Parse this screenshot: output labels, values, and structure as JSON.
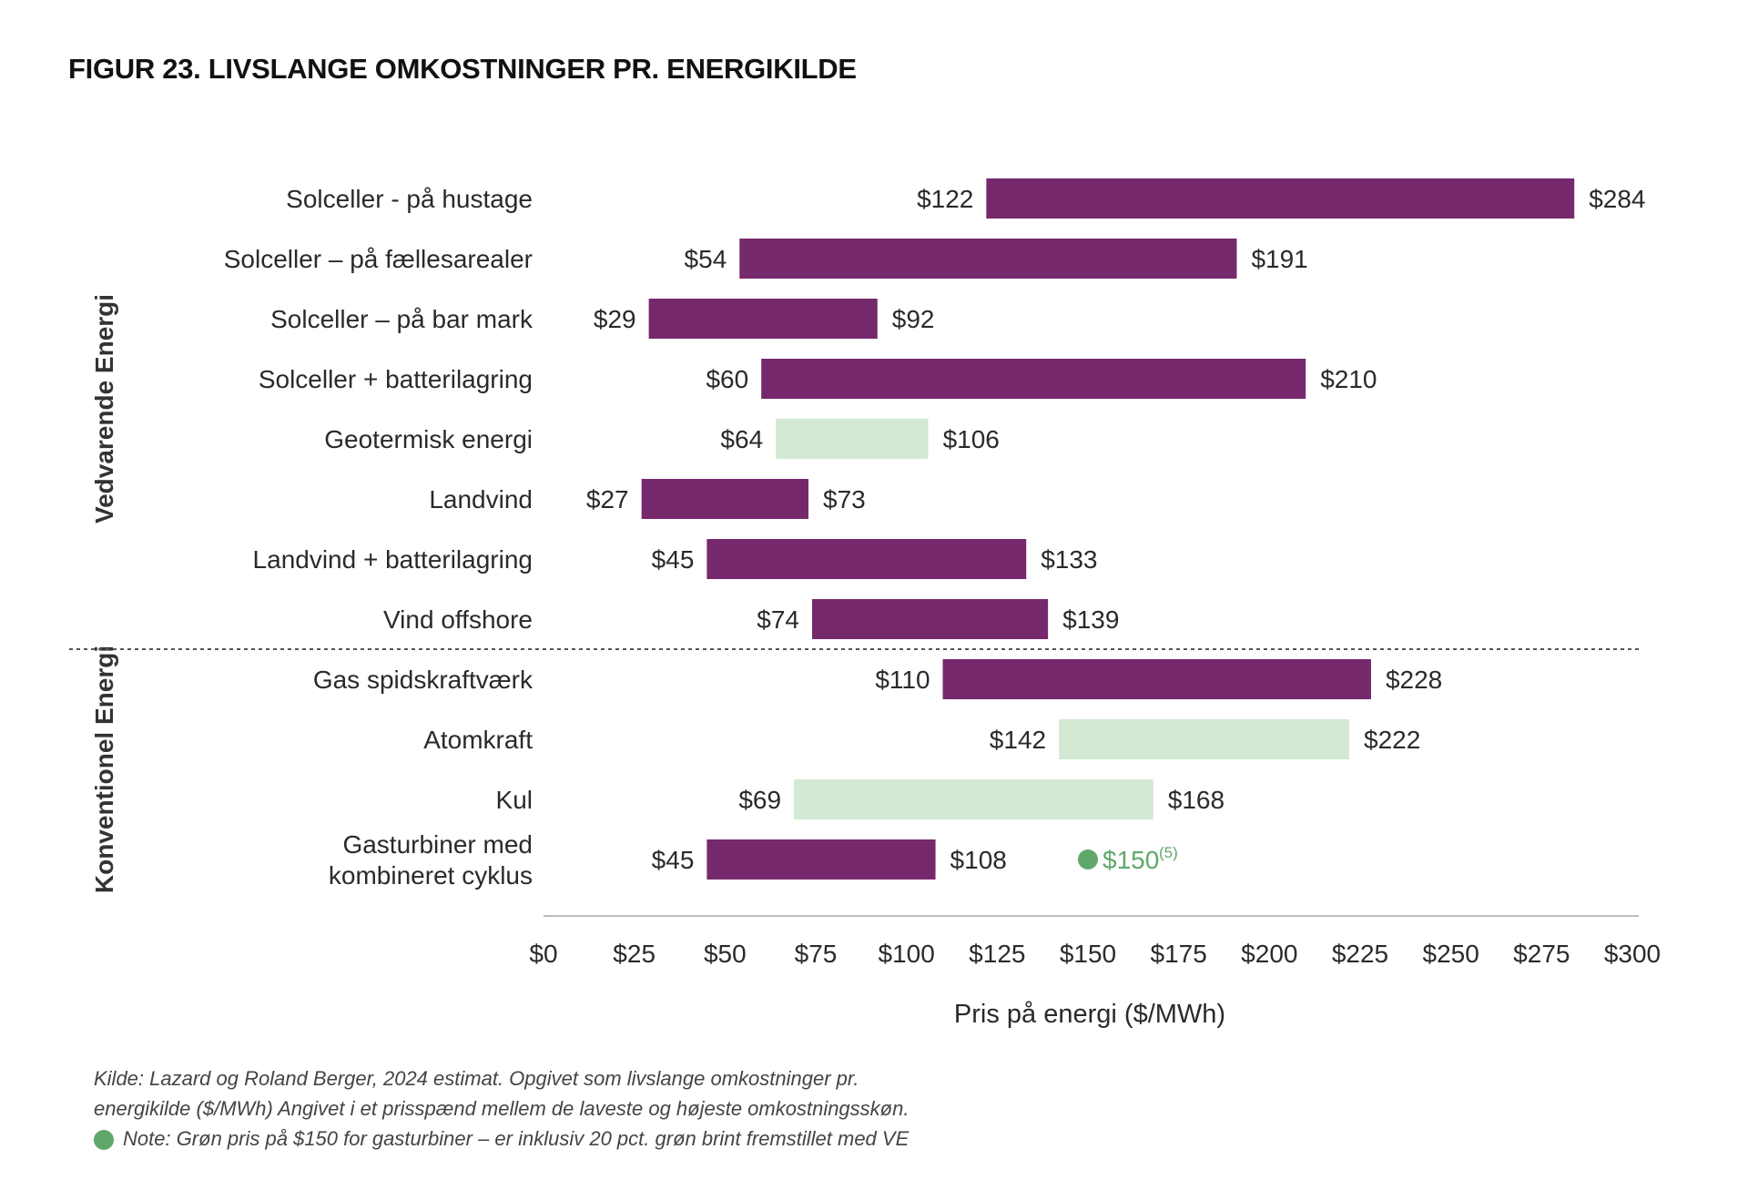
{
  "title": "FIGUR 23. LIVSLANGE OMKOSTNINGER PR. ENERGIKILDE",
  "colors": {
    "purple": "#76286d",
    "light_green": "#d3e9d4",
    "green_marker": "#5fa86a",
    "text": "#2a2a2a",
    "axis": "#bdbdbd",
    "divider": "#555555"
  },
  "chart_data": {
    "type": "bar",
    "orientation": "horizontal-range",
    "xlabel": "Pris på energi ($/MWh)",
    "xlim": [
      0,
      300
    ],
    "x_ticks": [
      0,
      25,
      50,
      75,
      100,
      125,
      150,
      175,
      200,
      225,
      250,
      275,
      300
    ],
    "x_tick_labels": [
      "$0",
      "$25",
      "$50",
      "$75",
      "$100",
      "$125",
      "$150",
      "$175",
      "$200",
      "$225",
      "$250",
      "$275",
      "$300"
    ],
    "grid": false,
    "groups": [
      {
        "label": "Vedvarende Energi",
        "categories": [
          {
            "label": [
              "Solceller  - på hustage"
            ],
            "low": 122,
            "high": 284,
            "low_label": "$122",
            "high_label": "$284",
            "color": "purple"
          },
          {
            "label": [
              "Solceller – på fællesarealer"
            ],
            "low": 54,
            "high": 191,
            "low_label": "$54",
            "high_label": "$191",
            "color": "purple"
          },
          {
            "label": [
              "Solceller – på bar mark"
            ],
            "low": 29,
            "high": 92,
            "low_label": "$29",
            "high_label": "$92",
            "color": "purple"
          },
          {
            "label": [
              "Solceller + batterilagring"
            ],
            "low": 60,
            "high": 210,
            "low_label": "$60",
            "high_label": "$210",
            "color": "purple"
          },
          {
            "label": [
              "Geotermisk energi"
            ],
            "low": 64,
            "high": 106,
            "low_label": "$64",
            "high_label": "$106",
            "color": "light_green"
          },
          {
            "label": [
              "Landvind"
            ],
            "low": 27,
            "high": 73,
            "low_label": "$27",
            "high_label": "$73",
            "color": "purple"
          },
          {
            "label": [
              "Landvind + batterilagring"
            ],
            "low": 45,
            "high": 133,
            "low_label": "$45",
            "high_label": "$133",
            "color": "purple"
          },
          {
            "label": [
              "Vind offshore"
            ],
            "low": 74,
            "high": 139,
            "low_label": "$74",
            "high_label": "$139",
            "color": "purple"
          }
        ]
      },
      {
        "label": "Konventionel Energi",
        "categories": [
          {
            "label": [
              "Gas spidskraftværk"
            ],
            "low": 110,
            "high": 228,
            "low_label": "$110",
            "high_label": "$228",
            "color": "purple"
          },
          {
            "label": [
              "Atomkraft"
            ],
            "low": 142,
            "high": 222,
            "low_label": "$142",
            "high_label": "$222",
            "color": "light_green"
          },
          {
            "label": [
              "Kul"
            ],
            "low": 69,
            "high": 168,
            "low_label": "$69",
            "high_label": "$168",
            "color": "light_green"
          },
          {
            "label": [
              "Gasturbiner med",
              "kombineret cyklus"
            ],
            "low": 45,
            "high": 108,
            "low_label": "$45",
            "high_label": "$108",
            "color": "purple",
            "marker": {
              "value": 150,
              "label": "$150",
              "superscript": "(5)"
            }
          }
        ]
      }
    ]
  },
  "footnote": {
    "lines": [
      "Kilde: Lazard og Roland Berger, 2024 estimat. Opgivet som livslange omkostninger pr.",
      "energikilde ($/MWh) Angivet i et prisspænd mellem de laveste og højeste omkostningsskøn."
    ],
    "note": "Note: Grøn pris på $150 for gasturbiner – er inklusiv 20 pct. grøn brint fremstillet med VE"
  }
}
